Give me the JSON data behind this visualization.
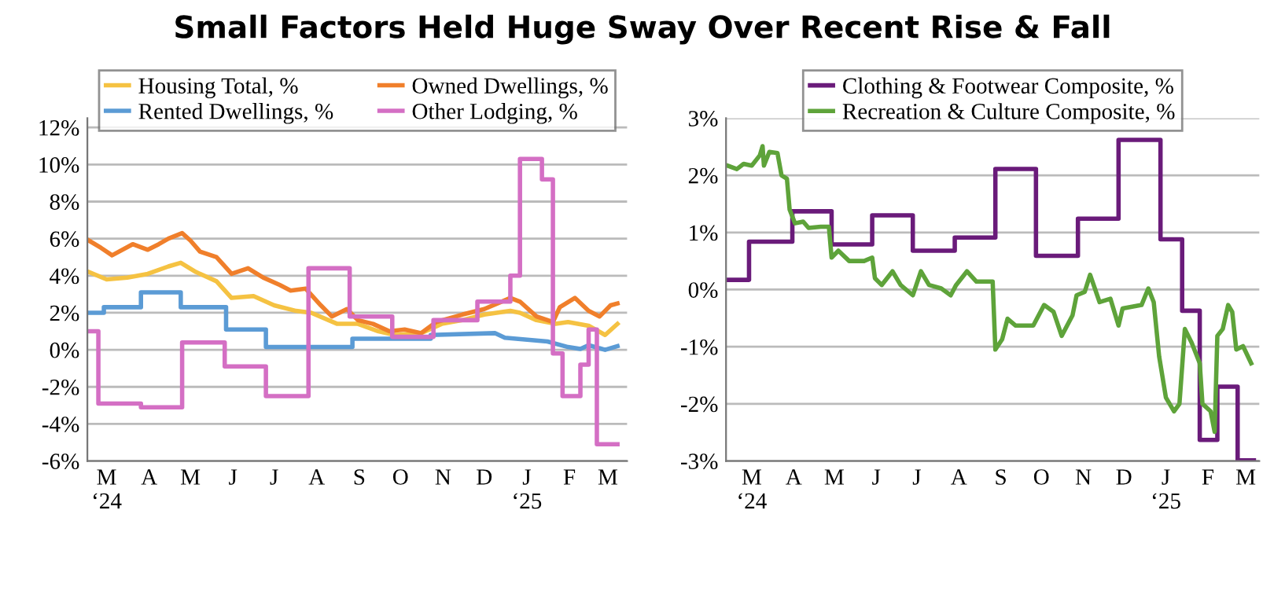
{
  "chart_data": [
    {
      "type": "line",
      "title": "Small Factors Held Huge Sway Over Recent Rise & Fall",
      "xlim": [
        "2024-03-01",
        "2025-03-29"
      ],
      "ylim": [
        -6,
        12.5
      ],
      "yticks": [
        {
          "value": -6,
          "label": "-6%"
        },
        {
          "value": -4,
          "label": "-4%"
        },
        {
          "value": -2,
          "label": "-2%"
        },
        {
          "value": 0,
          "label": "0%"
        },
        {
          "value": 2,
          "label": "2%"
        },
        {
          "value": 4,
          "label": "4%"
        },
        {
          "value": 6,
          "label": "6%"
        },
        {
          "value": 8,
          "label": "8%"
        },
        {
          "value": 10,
          "label": "10%"
        },
        {
          "value": 12,
          "label": "12%"
        }
      ],
      "xticks": [
        {
          "value": "2024-03-15",
          "label": "M\n‘24"
        },
        {
          "value": "2024-04-15",
          "label": "A"
        },
        {
          "value": "2024-05-15",
          "label": "M"
        },
        {
          "value": "2024-06-15",
          "label": "J"
        },
        {
          "value": "2024-07-15",
          "label": "J"
        },
        {
          "value": "2024-08-15",
          "label": "A"
        },
        {
          "value": "2024-09-15",
          "label": "S"
        },
        {
          "value": "2024-10-15",
          "label": "O"
        },
        {
          "value": "2024-11-15",
          "label": "N"
        },
        {
          "value": "2024-12-15",
          "label": "D"
        },
        {
          "value": "2025-01-15",
          "label": "J\n‘25"
        },
        {
          "value": "2025-02-15",
          "label": "F"
        },
        {
          "value": "2025-03-15",
          "label": "M"
        }
      ],
      "grid": "y",
      "legend": "top",
      "series": [
        {
          "name": "Housing Total, %",
          "color": "#f5c242",
          "x": [
            "2024-03-02",
            "2024-03-15",
            "2024-03-30",
            "2024-04-14",
            "2024-04-29",
            "2024-05-08",
            "2024-05-19",
            "2024-06-03",
            "2024-06-14",
            "2024-06-30",
            "2024-07-15",
            "2024-07-31",
            "2024-08-11",
            "2024-08-30",
            "2024-09-14",
            "2024-09-29",
            "2024-10-11",
            "2024-10-30",
            "2024-11-14",
            "2024-11-29",
            "2024-12-15",
            "2025-01-03",
            "2025-01-10",
            "2025-01-22",
            "2025-02-05",
            "2025-02-14",
            "2025-03-01",
            "2025-03-13",
            "2025-03-22"
          ],
          "values": [
            4.2,
            3.8,
            3.9,
            4.1,
            4.5,
            4.7,
            4.2,
            3.7,
            2.8,
            2.9,
            2.4,
            2.1,
            2.0,
            1.4,
            1.4,
            1.0,
            0.8,
            0.9,
            1.4,
            1.6,
            1.9,
            2.1,
            2.0,
            1.6,
            1.4,
            1.5,
            1.3,
            0.8,
            1.4
          ]
        },
        {
          "name": "Rented Dwellings, %",
          "color": "#5b9bd5",
          "x": [
            "2024-03-02",
            "2024-03-13",
            "2024-03-13",
            "2024-04-09",
            "2024-04-09",
            "2024-05-08",
            "2024-05-08",
            "2024-06-10",
            "2024-06-10",
            "2024-07-09",
            "2024-07-09",
            "2024-09-10",
            "2024-09-10",
            "2024-11-06",
            "2024-11-06",
            "2024-12-23",
            "2024-12-30",
            "2025-01-30",
            "2025-02-14",
            "2025-02-23",
            "2025-03-01",
            "2025-03-13",
            "2025-03-22"
          ],
          "values": [
            2.0,
            2.0,
            2.3,
            2.3,
            3.1,
            3.1,
            2.3,
            2.3,
            1.1,
            1.1,
            0.15,
            0.15,
            0.6,
            0.6,
            0.8,
            0.9,
            0.65,
            0.45,
            0.15,
            0.05,
            0.25,
            0.0,
            0.2
          ]
        },
        {
          "name": "Owned Dwellings, %",
          "color": "#f07f2b",
          "x": [
            "2024-03-02",
            "2024-03-11",
            "2024-03-19",
            "2024-04-03",
            "2024-04-14",
            "2024-04-22",
            "2024-04-29",
            "2024-05-09",
            "2024-05-15",
            "2024-05-22",
            "2024-06-03",
            "2024-06-14",
            "2024-06-26",
            "2024-07-07",
            "2024-07-19",
            "2024-07-27",
            "2024-08-07",
            "2024-08-18",
            "2024-08-26",
            "2024-09-06",
            "2024-09-14",
            "2024-09-25",
            "2024-10-07",
            "2024-10-18",
            "2024-10-30",
            "2024-11-10",
            "2024-11-29",
            "2024-12-15",
            "2025-01-03",
            "2025-01-10",
            "2025-01-22",
            "2025-02-03",
            "2025-02-08",
            "2025-02-19",
            "2025-03-01",
            "2025-03-09",
            "2025-03-17",
            "2025-03-22"
          ],
          "values": [
            5.9,
            5.5,
            5.1,
            5.7,
            5.4,
            5.7,
            6.0,
            6.3,
            5.9,
            5.3,
            5.0,
            4.1,
            4.4,
            3.9,
            3.5,
            3.2,
            3.3,
            2.4,
            1.8,
            2.2,
            1.6,
            1.4,
            1.0,
            1.1,
            0.9,
            1.5,
            1.9,
            2.2,
            2.8,
            2.6,
            1.8,
            1.5,
            2.3,
            2.8,
            2.1,
            1.8,
            2.4,
            2.5
          ]
        },
        {
          "name": "Other Lodging, %",
          "color": "#d46fc4",
          "x": [
            "2024-03-02",
            "2024-03-09",
            "2024-03-09",
            "2024-04-09",
            "2024-04-09",
            "2024-05-09",
            "2024-05-09",
            "2024-06-09",
            "2024-06-09",
            "2024-07-09",
            "2024-07-09",
            "2024-08-09",
            "2024-08-09",
            "2024-09-08",
            "2024-09-08",
            "2024-10-09",
            "2024-10-09",
            "2024-11-08",
            "2024-11-08",
            "2024-12-10",
            "2024-12-10",
            "2025-01-03",
            "2025-01-03",
            "2025-01-10",
            "2025-01-10",
            "2025-01-26",
            "2025-01-26",
            "2025-02-03",
            "2025-02-03",
            "2025-02-10",
            "2025-02-10",
            "2025-02-23",
            "2025-02-23",
            "2025-03-01",
            "2025-03-01",
            "2025-03-07",
            "2025-03-07",
            "2025-03-22"
          ],
          "values": [
            1.0,
            1.0,
            -2.9,
            -2.9,
            -3.1,
            -3.1,
            0.4,
            0.4,
            -0.9,
            -0.9,
            -2.5,
            -2.5,
            4.4,
            4.4,
            1.8,
            1.8,
            0.7,
            0.7,
            1.6,
            1.6,
            2.6,
            2.6,
            4.0,
            4.0,
            10.3,
            10.3,
            9.2,
            9.2,
            -0.2,
            -0.2,
            -2.5,
            -2.5,
            -0.8,
            -0.8,
            1.1,
            1.1,
            -5.1,
            -5.1
          ]
        }
      ]
    },
    {
      "type": "line",
      "xlim": [
        "2024-02-25",
        "2025-03-25"
      ],
      "ylim": [
        -3,
        3
      ],
      "yticks": [
        {
          "value": -3,
          "label": "-3%"
        },
        {
          "value": -2,
          "label": "-2%"
        },
        {
          "value": -1,
          "label": "-1%"
        },
        {
          "value": 0,
          "label": "0%"
        },
        {
          "value": 1,
          "label": "1%"
        },
        {
          "value": 2,
          "label": "2%"
        },
        {
          "value": 3,
          "label": "3%"
        }
      ],
      "xticks": [
        {
          "value": "2024-03-15",
          "label": "M\n‘24"
        },
        {
          "value": "2024-04-15",
          "label": "A"
        },
        {
          "value": "2024-05-15",
          "label": "M"
        },
        {
          "value": "2024-06-15",
          "label": "J"
        },
        {
          "value": "2024-07-15",
          "label": "J"
        },
        {
          "value": "2024-08-15",
          "label": "A"
        },
        {
          "value": "2024-09-15",
          "label": "S"
        },
        {
          "value": "2024-10-15",
          "label": "O"
        },
        {
          "value": "2024-11-15",
          "label": "N"
        },
        {
          "value": "2024-12-15",
          "label": "D"
        },
        {
          "value": "2025-01-15",
          "label": "J\n‘25"
        },
        {
          "value": "2025-02-15",
          "label": "F"
        },
        {
          "value": "2025-03-15",
          "label": "M"
        }
      ],
      "grid": "y",
      "legend": "top",
      "series": [
        {
          "name": "Clothing & Footwear Composite, %",
          "color": "#6a1b7a",
          "x": [
            "2024-02-26",
            "2024-03-13",
            "2024-03-13",
            "2024-04-14",
            "2024-04-14",
            "2024-05-13",
            "2024-05-13",
            "2024-06-12",
            "2024-06-12",
            "2024-07-12",
            "2024-07-12",
            "2024-08-12",
            "2024-08-12",
            "2024-09-11",
            "2024-09-11",
            "2024-10-11",
            "2024-10-11",
            "2024-11-11",
            "2024-11-11",
            "2024-12-11",
            "2024-12-11",
            "2025-01-11",
            "2025-01-11",
            "2025-01-27",
            "2025-01-27",
            "2025-02-09",
            "2025-02-09",
            "2025-02-22",
            "2025-02-22",
            "2025-03-09",
            "2025-03-09",
            "2025-03-21"
          ],
          "values": [
            0.17,
            0.17,
            0.84,
            0.84,
            1.37,
            1.37,
            0.79,
            0.79,
            1.3,
            1.3,
            0.68,
            0.68,
            0.91,
            0.91,
            2.11,
            2.11,
            0.59,
            0.59,
            1.24,
            1.24,
            2.62,
            2.62,
            0.88,
            0.88,
            -0.37,
            -0.37,
            -2.63,
            -2.63,
            -1.7,
            -1.7,
            -2.99,
            -2.99
          ]
        },
        {
          "name": "Recreation & Culture Composite, %",
          "color": "#5ea33a",
          "x": [
            "2024-02-26",
            "2024-03-04",
            "2024-03-09",
            "2024-03-15",
            "2024-03-21",
            "2024-03-23",
            "2024-03-24",
            "2024-03-28",
            "2024-04-03",
            "2024-04-06",
            "2024-04-10",
            "2024-04-12",
            "2024-04-16",
            "2024-04-22",
            "2024-04-26",
            "2024-05-05",
            "2024-05-11",
            "2024-05-13",
            "2024-05-18",
            "2024-05-26",
            "2024-06-06",
            "2024-06-12",
            "2024-06-14",
            "2024-06-19",
            "2024-06-27",
            "2024-07-03",
            "2024-07-12",
            "2024-07-18",
            "2024-07-24",
            "2024-08-02",
            "2024-08-09",
            "2024-08-13",
            "2024-08-21",
            "2024-08-28",
            "2024-09-09",
            "2024-09-11",
            "2024-09-16",
            "2024-09-20",
            "2024-09-26",
            "2024-10-09",
            "2024-10-17",
            "2024-10-24",
            "2024-10-30",
            "2024-11-07",
            "2024-11-10",
            "2024-11-16",
            "2024-11-20",
            "2024-11-27",
            "2024-12-05",
            "2024-12-11",
            "2024-12-14",
            "2024-12-28",
            "2025-01-02",
            "2025-01-06",
            "2025-01-10",
            "2025-01-15",
            "2025-01-21",
            "2025-01-25",
            "2025-01-29",
            "2025-02-03",
            "2025-02-09",
            "2025-02-11",
            "2025-02-17",
            "2025-02-20",
            "2025-02-22",
            "2025-02-26",
            "2025-03-02",
            "2025-03-05",
            "2025-03-08",
            "2025-03-13",
            "2025-03-19"
          ],
          "values": [
            2.17,
            2.11,
            2.2,
            2.17,
            2.35,
            2.51,
            2.17,
            2.41,
            2.39,
            2.0,
            1.94,
            1.4,
            1.16,
            1.19,
            1.08,
            1.1,
            1.1,
            0.56,
            0.68,
            0.5,
            0.5,
            0.56,
            0.2,
            0.08,
            0.32,
            0.08,
            -0.1,
            0.32,
            0.08,
            0.02,
            -0.1,
            0.08,
            0.32,
            0.14,
            0.14,
            -1.05,
            -0.87,
            -0.51,
            -0.63,
            -0.63,
            -0.27,
            -0.39,
            -0.81,
            -0.45,
            -0.1,
            -0.04,
            0.26,
            -0.22,
            -0.16,
            -0.63,
            -0.33,
            -0.27,
            0.02,
            -0.22,
            -1.17,
            -1.89,
            -2.13,
            -2.0,
            -0.69,
            -0.93,
            -1.29,
            -2.0,
            -2.13,
            -2.49,
            -0.81,
            -0.69,
            -0.27,
            -0.39,
            -1.05,
            -0.99,
            -1.29
          ]
        }
      ]
    }
  ]
}
